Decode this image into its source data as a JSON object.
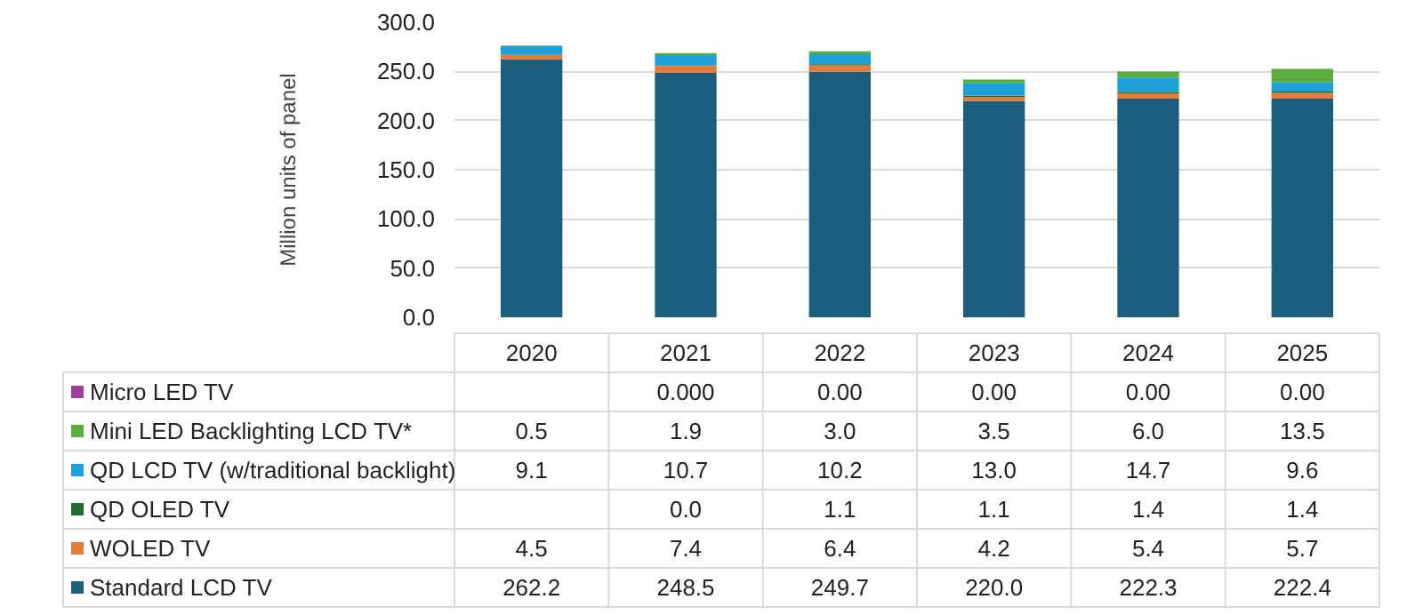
{
  "chart_data": {
    "type": "bar",
    "stacked": true,
    "ylabel": "Million units of panel",
    "categories": [
      "2020",
      "2021",
      "2022",
      "2023",
      "2024",
      "2025"
    ],
    "ylim": [
      0,
      300
    ],
    "yticks": [
      {
        "value": 0,
        "label": "0.0"
      },
      {
        "value": 50,
        "label": "50.0"
      },
      {
        "value": 100,
        "label": "100.0"
      },
      {
        "value": 150,
        "label": "150.0"
      },
      {
        "value": 200,
        "label": "200.0"
      },
      {
        "value": 250,
        "label": "250.0"
      },
      {
        "value": 300,
        "label": "300.0"
      }
    ],
    "grid": "y",
    "legend": "bottom",
    "series": [
      {
        "name": "Standard LCD TV",
        "color": "#1b5e7e",
        "values": [
          262.2,
          248.5,
          249.7,
          220.0,
          222.3,
          222.4
        ],
        "value_labels": [
          "262.2",
          "248.5",
          "249.7",
          "220.0",
          "222.3",
          "222.4"
        ]
      },
      {
        "name": "WOLED TV",
        "color": "#e57a3a",
        "values": [
          4.5,
          7.4,
          6.4,
          4.2,
          5.4,
          5.7
        ],
        "value_labels": [
          "4.5",
          "7.4",
          "6.4",
          "4.2",
          "5.4",
          "5.7"
        ]
      },
      {
        "name": "QD OLED TV",
        "color": "#1f6b2e",
        "values": [
          null,
          0.0,
          1.1,
          1.1,
          1.4,
          1.4
        ],
        "value_labels": [
          null,
          "0.0",
          "1.1",
          "1.1",
          "1.4",
          "1.4"
        ]
      },
      {
        "name": "QD LCD TV (w/traditional backlight)",
        "color": "#1ea0d8",
        "values": [
          9.1,
          10.7,
          10.2,
          13.0,
          14.7,
          9.6
        ],
        "value_labels": [
          "9.1",
          "10.7",
          "10.2",
          "13.0",
          "14.7",
          "9.6"
        ]
      },
      {
        "name": "Mini LED Backlighting LCD TV*",
        "color": "#5aac3c",
        "values": [
          0.5,
          1.9,
          3.0,
          3.5,
          6.0,
          13.5
        ],
        "value_labels": [
          "0.5",
          "1.9",
          "3.0",
          "3.5",
          "6.0",
          "13.5"
        ]
      },
      {
        "name": "Micro LED TV",
        "color": "#a03da0",
        "values": [
          null,
          0.0,
          0.0,
          0.0,
          0.0,
          0.0
        ],
        "value_labels": [
          null,
          "0.000",
          "0.00",
          "0.00",
          "0.00",
          "0.00"
        ]
      }
    ]
  }
}
